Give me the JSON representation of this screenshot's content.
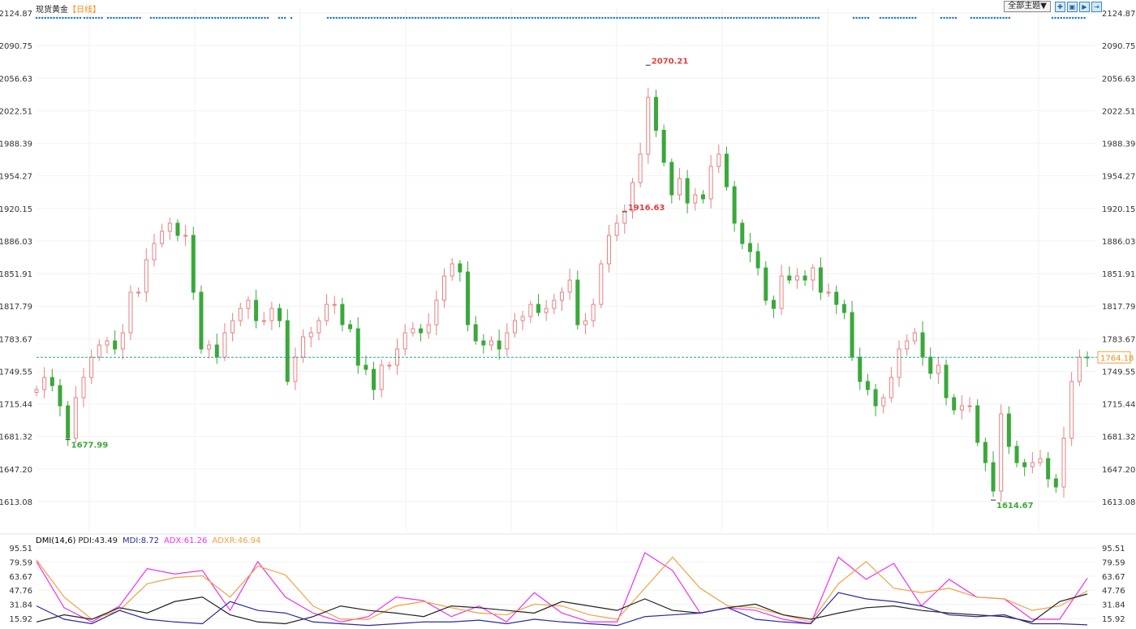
{
  "header": {
    "title": "现货黄金",
    "period": "【日线】",
    "theme_label": "全部主题▼",
    "icons": [
      "crosshair-icon",
      "zoom-in-icon",
      "step-right-icon",
      "go-end-icon"
    ]
  },
  "colors": {
    "up": "#e88080",
    "down": "#3aa83a",
    "dots": "#2a7fc8",
    "last": "#2aa0a0",
    "pdi": "#222222",
    "mdi": "#2a2aa0",
    "adx": "#ee30ee",
    "adxr": "#f0a040"
  },
  "chart_data": [
    {
      "type": "candlestick",
      "title": "现货黄金",
      "ylim": [
        1613.08,
        2124.87
      ],
      "yticks": [
        "2124.87",
        "2090.75",
        "2056.63",
        "2022.51",
        "1988.39",
        "1954.27",
        "1920.15",
        "1886.03",
        "1851.91",
        "1817.79",
        "1783.67",
        "1749.55",
        "1715.44",
        "1681.32",
        "1647.20",
        "1613.08"
      ],
      "closes": [
        1730.4,
        1743.1,
        1734.6,
        1713.4,
        1679.4,
        1721.9,
        1743.1,
        1764.4,
        1777.1,
        1781.4,
        1772.9,
        1789.9,
        1832.4,
        1832.4,
        1866.4,
        1883.4,
        1896.2,
        1904.7,
        1891.9,
        1891.9,
        1832.4,
        1772.9,
        1777.1,
        1764.4,
        1789.9,
        1802.6,
        1815.4,
        1823.9,
        1802.6,
        1802.6,
        1815.4,
        1802.6,
        1738.9,
        1764.4,
        1785.6,
        1789.9,
        1802.6,
        1819.6,
        1819.6,
        1798.4,
        1794.1,
        1755.9,
        1751.6,
        1730.4,
        1755.9,
        1755.9,
        1772.9,
        1789.9,
        1794.1,
        1789.9,
        1798.4,
        1823.9,
        1849.4,
        1862.1,
        1853.6,
        1798.4,
        1781.4,
        1777.1,
        1781.4,
        1772.9,
        1789.9,
        1802.6,
        1806.9,
        1819.6,
        1811.1,
        1815.4,
        1823.9,
        1832.4,
        1845.1,
        1798.4,
        1802.6,
        1819.6,
        1862.1,
        1891.9,
        1904.7,
        1917.4,
        1947.2,
        1977.0,
        2036.5,
        2002.0,
        1968.4,
        1934.4,
        1951.4,
        1925.9,
        1934.4,
        1930.2,
        1964.2,
        1977.0,
        1942.9,
        1904.7,
        1883.4,
        1874.9,
        1857.9,
        1823.9,
        1815.4,
        1849.4,
        1845.1,
        1849.4,
        1845.1,
        1857.9,
        1832.4,
        1832.4,
        1819.6,
        1811.1,
        1764.4,
        1738.9,
        1730.4,
        1713.4,
        1721.9,
        1743.1,
        1772.9,
        1781.4,
        1789.9,
        1764.4,
        1747.4,
        1755.9,
        1721.9,
        1709.1,
        1713.4,
        1713.4,
        1675.1,
        1653.9,
        1624.1,
        1704.9,
        1670.9,
        1653.9,
        1649.6,
        1653.9,
        1658.1,
        1636.9,
        1628.4,
        1679.4,
        1738.9,
        1764.4,
        1764.18
      ],
      "last_price": "1764.18",
      "annotations": [
        {
          "label": "2070.21",
          "value": 2070.21,
          "kind": "high"
        },
        {
          "label": "1916.63",
          "value": 1916.63,
          "kind": "high"
        },
        {
          "label": "1677.99",
          "value": 1677.99,
          "kind": "low"
        },
        {
          "label": "1614.67",
          "value": 1614.67,
          "kind": "low"
        }
      ]
    },
    {
      "type": "line",
      "title": "DMI(14,6)",
      "ylim": [
        8,
        98
      ],
      "yticks": [
        "95.51",
        "79.59",
        "63.67",
        "47.76",
        "31.84",
        "15.92"
      ],
      "legend": [
        {
          "key": "pdi",
          "text": "PDI:43.49"
        },
        {
          "key": "mdi",
          "text": "MDI:8.72"
        },
        {
          "key": "adx",
          "text": "ADX:61.26"
        },
        {
          "key": "adxr",
          "text": "ADXR:46.94"
        }
      ],
      "series": [
        {
          "name": "ADX",
          "key": "adx",
          "values": [
            80,
            28,
            12,
            30,
            72,
            66,
            70,
            25,
            80,
            40,
            22,
            12,
            18,
            40,
            36,
            18,
            30,
            12,
            45,
            22,
            12,
            12,
            90,
            70,
            22,
            28,
            25,
            15,
            10,
            85,
            60,
            78,
            30,
            60,
            40,
            38,
            15,
            15,
            61.26
          ]
        },
        {
          "name": "ADXR",
          "key": "adxr",
          "values": [
            82,
            40,
            15,
            25,
            55,
            62,
            64,
            40,
            75,
            65,
            30,
            15,
            15,
            30,
            35,
            28,
            22,
            20,
            32,
            30,
            20,
            15,
            50,
            85,
            50,
            30,
            28,
            20,
            12,
            55,
            80,
            50,
            45,
            50,
            40,
            38,
            25,
            30,
            46.94
          ]
        },
        {
          "name": "PDI",
          "key": "pdi",
          "values": [
            12,
            20,
            15,
            28,
            22,
            35,
            40,
            20,
            12,
            10,
            18,
            30,
            25,
            22,
            18,
            30,
            28,
            25,
            22,
            35,
            30,
            25,
            38,
            25,
            22,
            28,
            32,
            20,
            15,
            22,
            28,
            30,
            25,
            22,
            20,
            18,
            12,
            35,
            43.49
          ]
        },
        {
          "name": "MDI",
          "key": "mdi",
          "values": [
            30,
            15,
            10,
            25,
            15,
            12,
            10,
            35,
            25,
            22,
            12,
            10,
            8,
            10,
            12,
            12,
            14,
            10,
            15,
            12,
            10,
            8,
            18,
            20,
            22,
            28,
            15,
            12,
            10,
            45,
            38,
            35,
            30,
            20,
            18,
            20,
            10,
            10,
            8.72
          ]
        }
      ]
    }
  ]
}
